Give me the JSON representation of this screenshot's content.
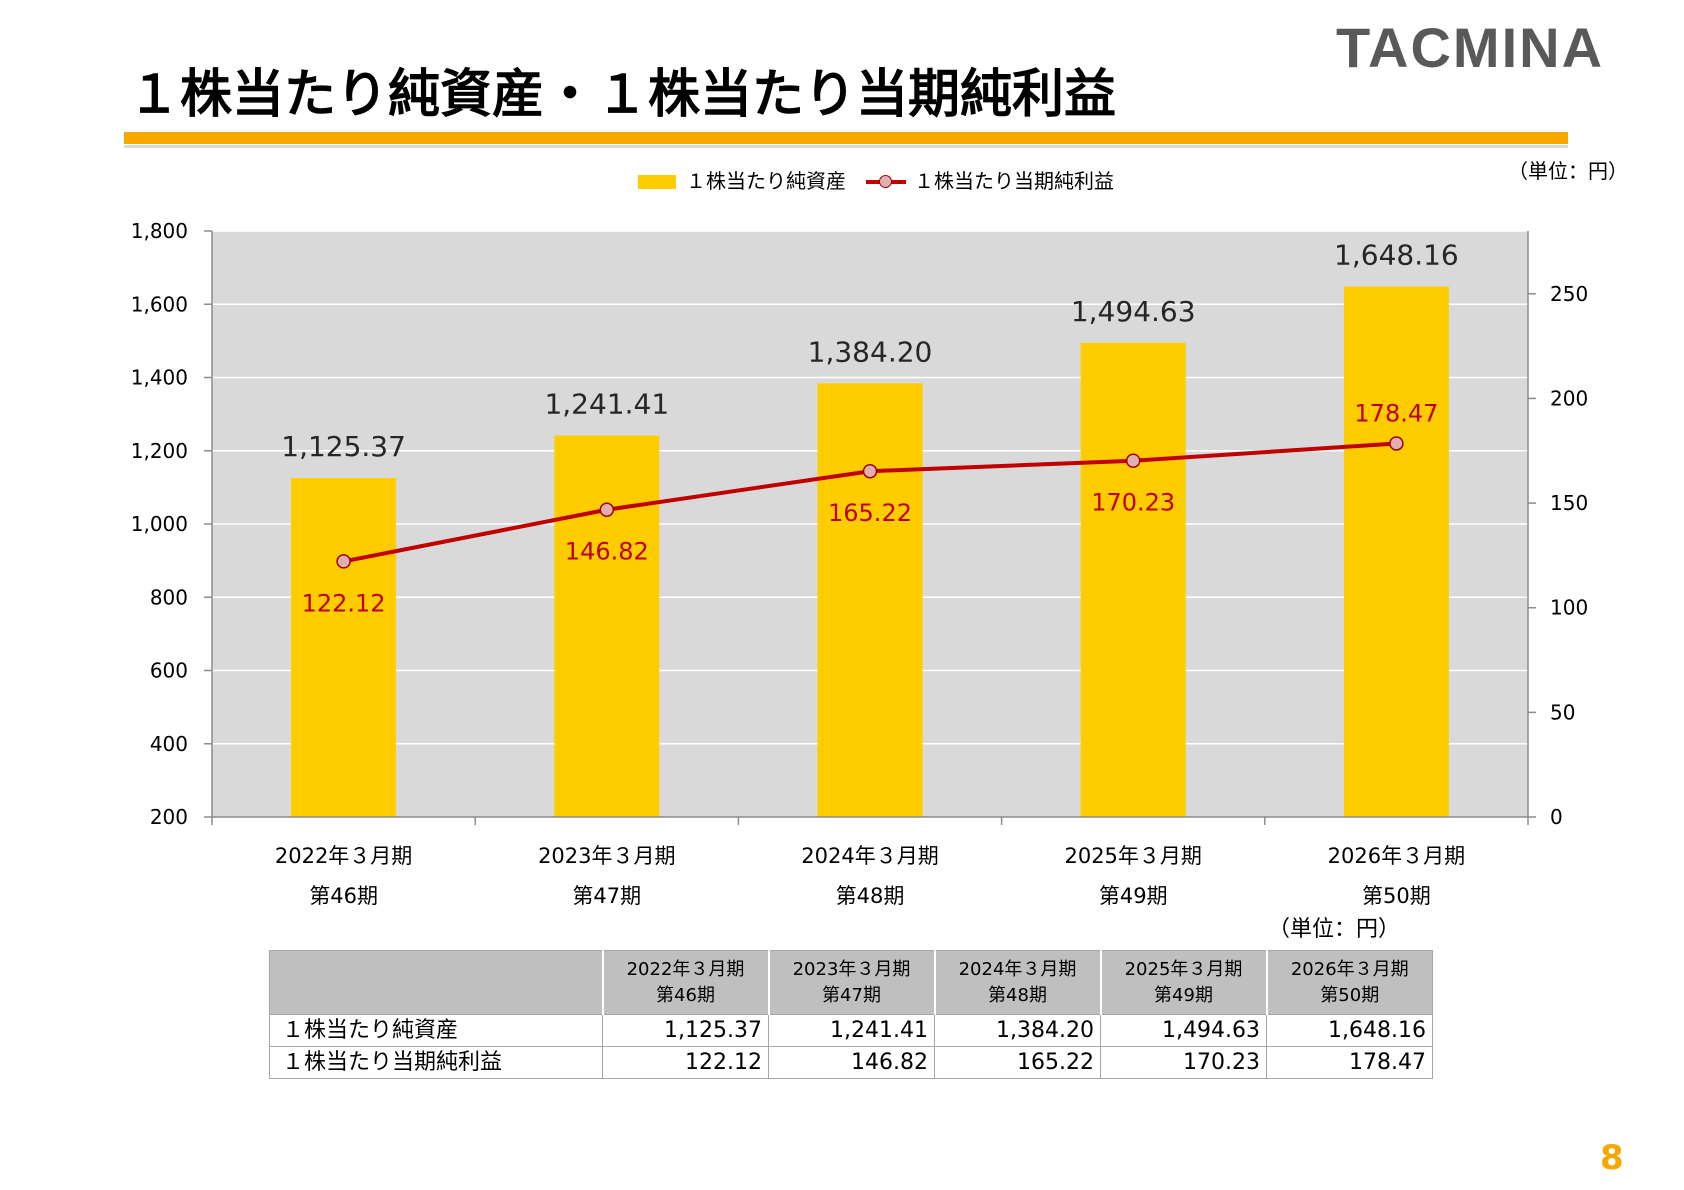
{
  "logo": {
    "text": "TACMINA"
  },
  "title": "１株当たり純資産・１株当たり当期純利益",
  "unit_label": "（単位：円）",
  "page_number": "8",
  "colors": {
    "accent": "#f5a800",
    "bar": "#ffcc00",
    "line": "#c00000",
    "marker_fill": "#e0b0b0",
    "plot_background": "#d9d9d9",
    "bar_label": "#262626",
    "table_header": "#bfbfbf"
  },
  "chart_data": {
    "type": "bar",
    "categories": [
      "2022年３月期",
      "2023年３月期",
      "2024年３月期",
      "2025年３月期",
      "2026年３月期"
    ],
    "category_sublabels": [
      "第46期",
      "第47期",
      "第48期",
      "第49期",
      "第50期"
    ],
    "series": [
      {
        "name": "１株当たり純資産",
        "type": "bar",
        "axis": "left",
        "values": [
          1125.37,
          1241.41,
          1384.2,
          1494.63,
          1648.16
        ]
      },
      {
        "name": "１株当たり当期純利益",
        "type": "line",
        "axis": "right",
        "values": [
          122.12,
          146.82,
          165.22,
          170.23,
          178.47
        ]
      }
    ],
    "ylim_left": [
      200,
      1800
    ],
    "yticks_left": [
      200,
      400,
      600,
      800,
      1000,
      1200,
      1400,
      1600,
      1800
    ],
    "ylim_right": [
      0,
      280
    ],
    "yticks_right": [
      0,
      50,
      100,
      150,
      200,
      250
    ],
    "grid": true,
    "legend": "top-center",
    "data_labels": true
  },
  "table": {
    "unit": "（単位：円）",
    "columns": [
      {
        "year": "2022年３月期",
        "period": "第46期"
      },
      {
        "year": "2023年３月期",
        "period": "第47期"
      },
      {
        "year": "2024年３月期",
        "period": "第48期"
      },
      {
        "year": "2025年３月期",
        "period": "第49期"
      },
      {
        "year": "2026年３月期",
        "period": "第50期"
      }
    ],
    "rows": [
      {
        "label": "１株当たり純資産",
        "values": [
          "1,125.37",
          "1,241.41",
          "1,384.20",
          "1,494.63",
          "1,648.16"
        ]
      },
      {
        "label": "１株当たり当期純利益",
        "values": [
          "122.12",
          "146.82",
          "165.22",
          "170.23",
          "178.47"
        ]
      }
    ]
  }
}
